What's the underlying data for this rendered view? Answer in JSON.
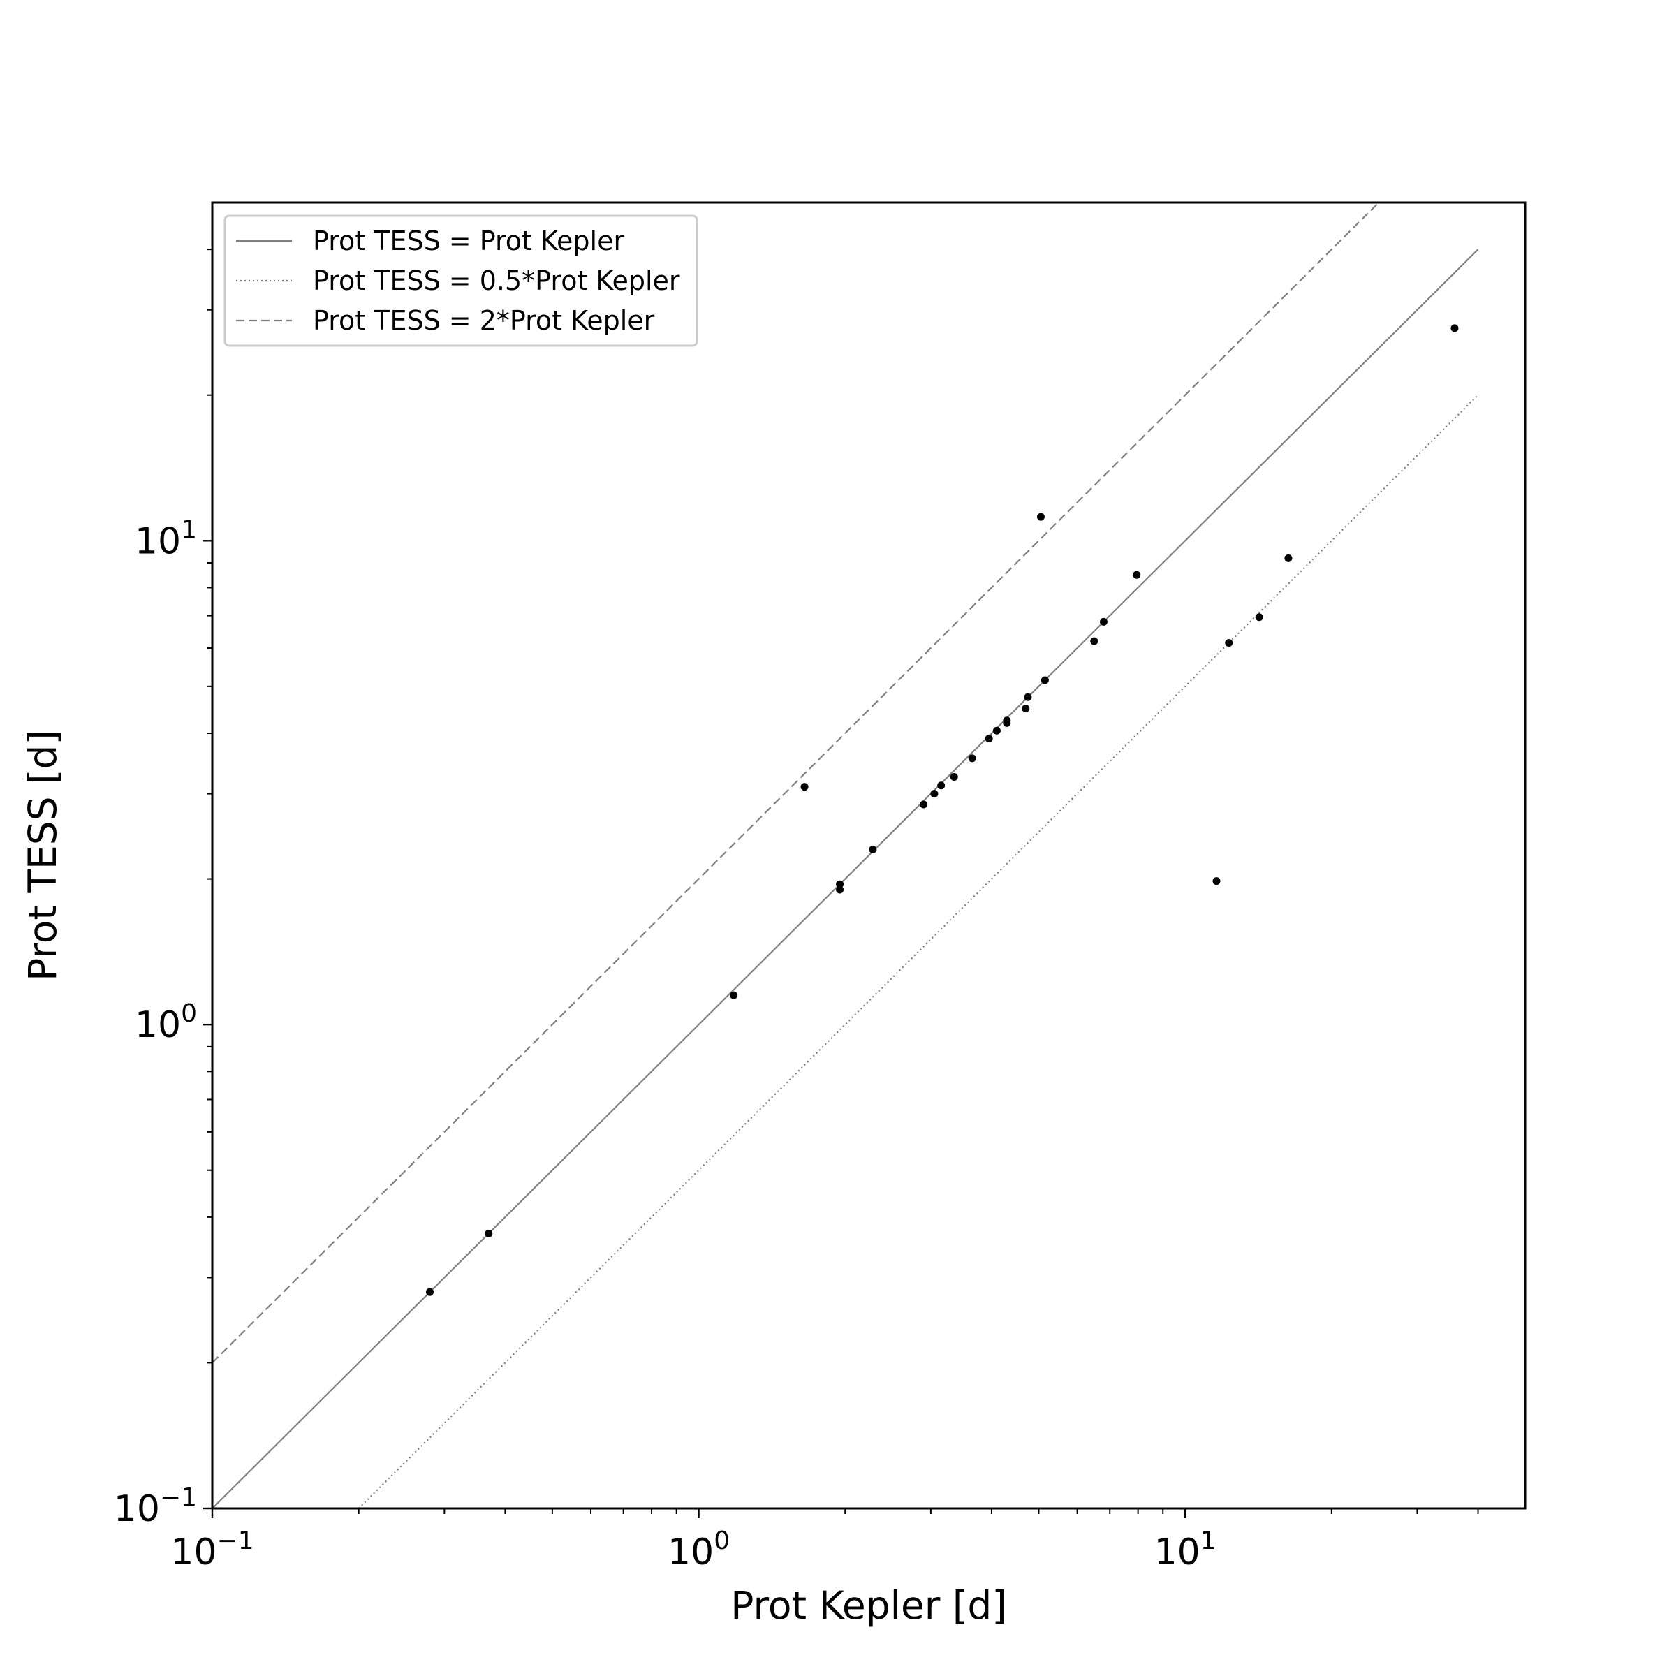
{
  "chart_data": {
    "type": "scatter",
    "xlabel": "Prot Kepler [d]",
    "ylabel": "Prot TESS [d]",
    "xscale": "log",
    "yscale": "log",
    "xlim": [
      0.1,
      50
    ],
    "ylim": [
      0.1,
      50
    ],
    "x_ticks": [
      {
        "value": 0.1,
        "base": "10",
        "exp": "−1"
      },
      {
        "value": 1,
        "base": "10",
        "exp": "0"
      },
      {
        "value": 10,
        "base": "10",
        "exp": "1"
      }
    ],
    "y_ticks": [
      {
        "value": 0.1,
        "base": "10",
        "exp": "−1"
      },
      {
        "value": 1,
        "base": "10",
        "exp": "0"
      },
      {
        "value": 10,
        "base": "10",
        "exp": "1"
      }
    ],
    "grid": false,
    "legend_position": "top-left",
    "reference_lines": [
      {
        "name": "Prot TESS = Prot Kepler",
        "factor": 1,
        "style": "solid",
        "x_range": [
          0.1,
          40
        ],
        "color": "#808080"
      },
      {
        "name": "Prot TESS = 0.5*Prot Kepler",
        "factor": 0.5,
        "style": "dotted",
        "x_range": [
          0.2,
          40
        ],
        "color": "#808080"
      },
      {
        "name": "Prot TESS = 2*Prot Kepler",
        "factor": 2,
        "style": "dashed",
        "x_range": [
          0.1,
          40
        ],
        "color": "#808080"
      }
    ],
    "points": [
      {
        "x": 0.28,
        "y": 0.28
      },
      {
        "x": 0.37,
        "y": 0.37
      },
      {
        "x": 1.18,
        "y": 1.15
      },
      {
        "x": 1.65,
        "y": 3.1
      },
      {
        "x": 1.95,
        "y": 1.95
      },
      {
        "x": 1.95,
        "y": 1.9
      },
      {
        "x": 2.28,
        "y": 2.3
      },
      {
        "x": 2.9,
        "y": 2.85
      },
      {
        "x": 3.05,
        "y": 3.0
      },
      {
        "x": 3.15,
        "y": 3.12
      },
      {
        "x": 3.35,
        "y": 3.25
      },
      {
        "x": 3.65,
        "y": 3.55
      },
      {
        "x": 3.95,
        "y": 3.9
      },
      {
        "x": 4.1,
        "y": 4.05
      },
      {
        "x": 4.3,
        "y": 4.25
      },
      {
        "x": 4.3,
        "y": 4.2
      },
      {
        "x": 4.7,
        "y": 4.5
      },
      {
        "x": 4.75,
        "y": 4.75
      },
      {
        "x": 5.05,
        "y": 11.2
      },
      {
        "x": 5.15,
        "y": 5.15
      },
      {
        "x": 6.5,
        "y": 6.2
      },
      {
        "x": 6.8,
        "y": 6.8
      },
      {
        "x": 7.95,
        "y": 8.5
      },
      {
        "x": 11.6,
        "y": 1.98
      },
      {
        "x": 12.3,
        "y": 6.15
      },
      {
        "x": 14.2,
        "y": 6.95
      },
      {
        "x": 16.3,
        "y": 9.2
      },
      {
        "x": 35.8,
        "y": 27.5
      }
    ],
    "point_color": "#000000"
  }
}
